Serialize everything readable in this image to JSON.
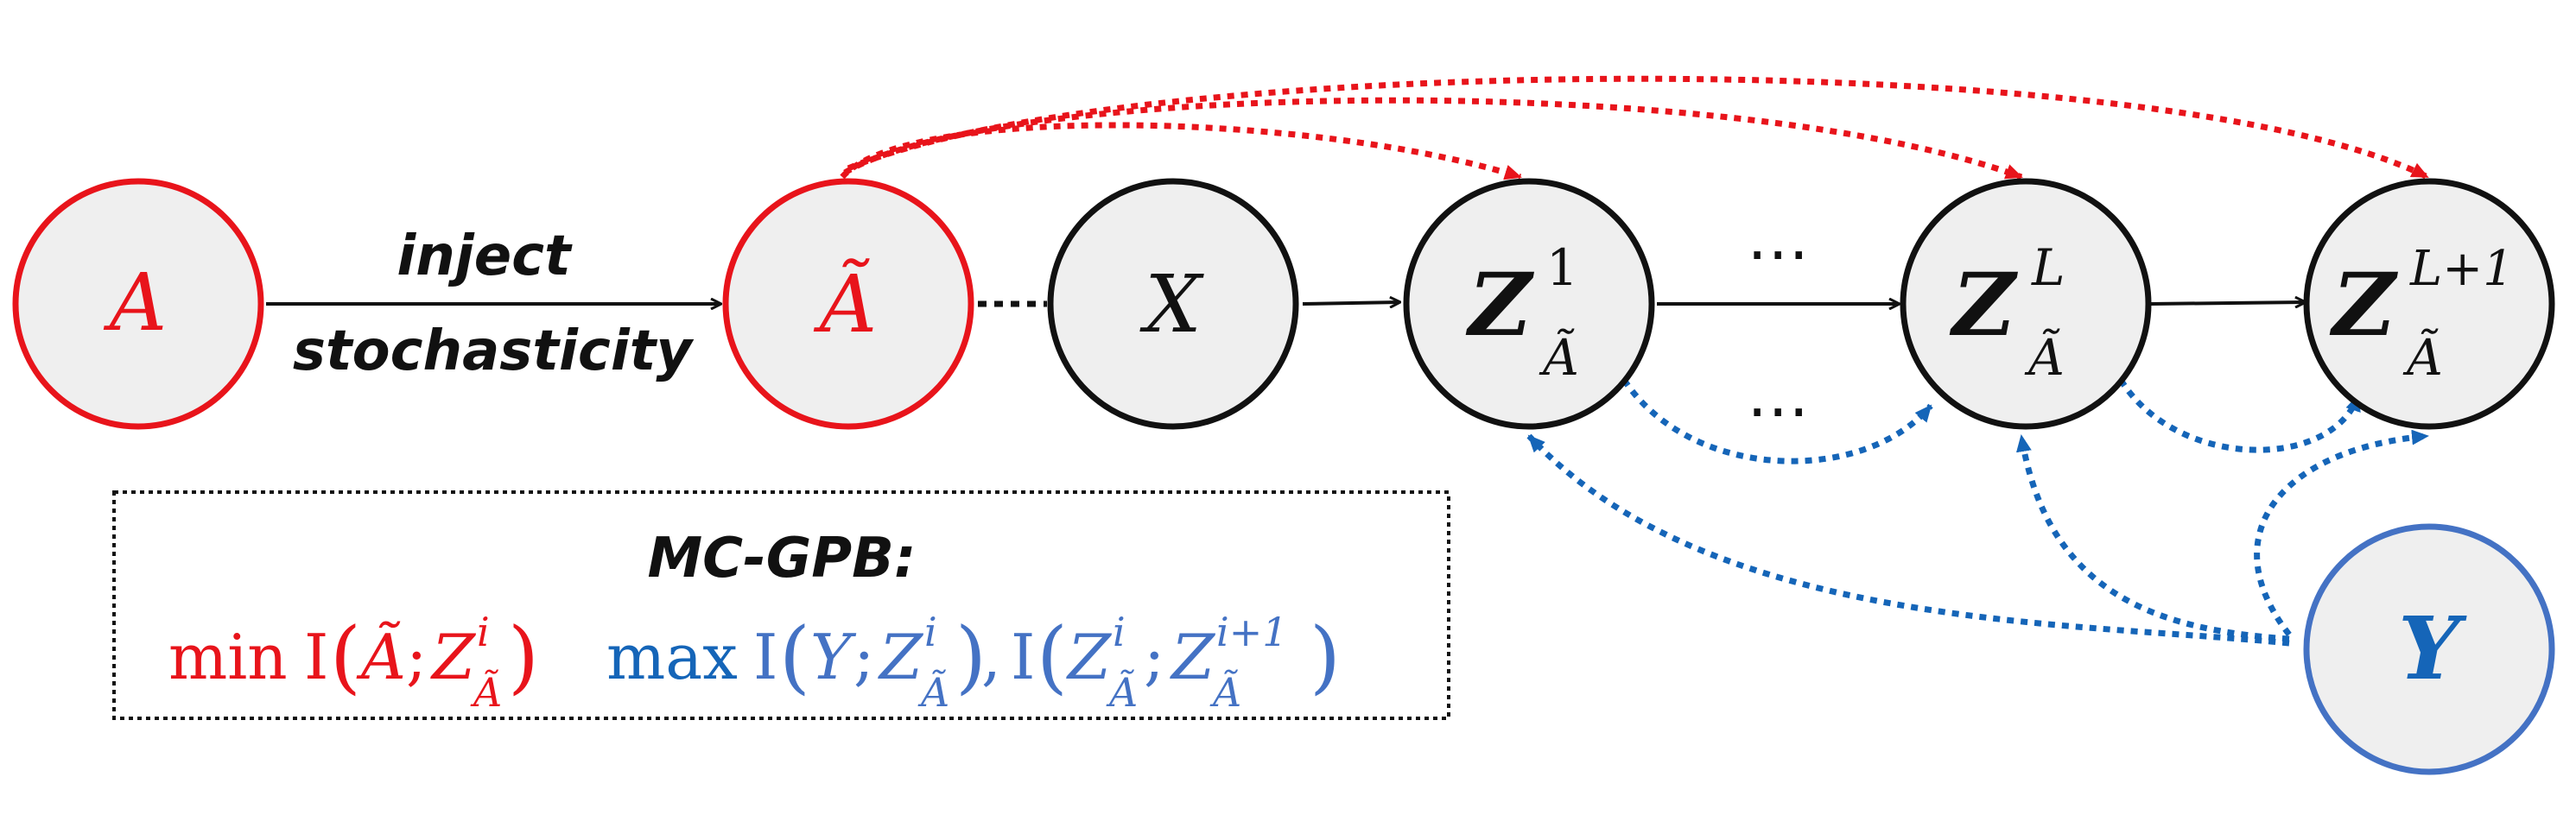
{
  "colors": {
    "red": "#e8141b",
    "blue": "#1565b8",
    "blue_light": "#4472c4",
    "black": "#111111",
    "node_fill": "#efefef"
  },
  "edge_label": {
    "line1": "inject",
    "line2": "stochasticity"
  },
  "nodes": {
    "a": {
      "label": "A"
    },
    "a_tilde": {
      "label": "Ã"
    },
    "x": {
      "label": "X"
    },
    "z1": {
      "base": "Z",
      "sup": "1",
      "sub": "Ã"
    },
    "zl": {
      "base": "Z",
      "sup": "L",
      "sub": "Ã"
    },
    "zl1": {
      "base": "Z",
      "sup": "L+1",
      "sub": "Ã"
    },
    "y": {
      "label": "Y"
    }
  },
  "ellipsis": "⋯",
  "legend": {
    "title": "MC-GPB:",
    "min_op": "min",
    "max_op": "max",
    "info": "I",
    "var_a": "Ã",
    "var_z": "Z",
    "var_y": "Y",
    "sup_i": "i",
    "sup_i1": "i+1",
    "sub_a": "Ã"
  }
}
